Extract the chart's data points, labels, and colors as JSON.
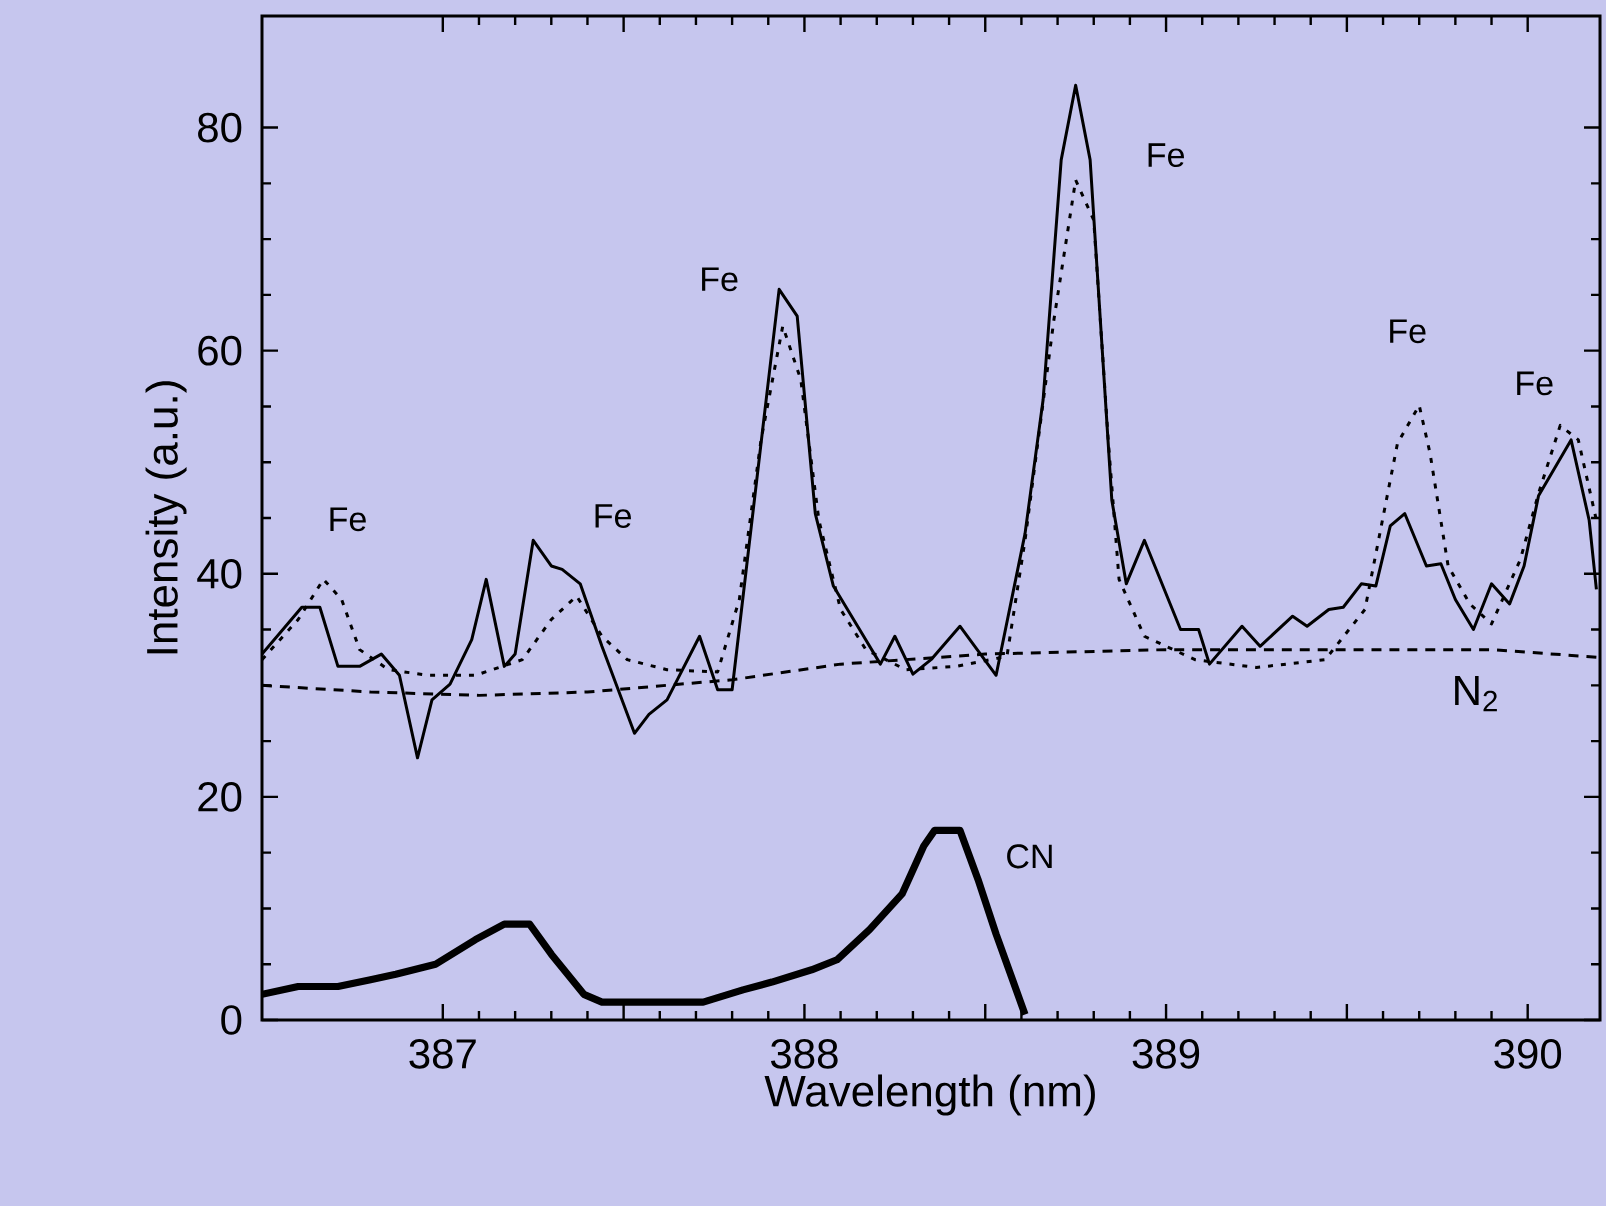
{
  "chart_data": {
    "type": "line",
    "xlabel": "Wavelength (nm)",
    "ylabel": "Intensity (a.u.)",
    "xlim": [
      386.5,
      390.2
    ],
    "ylim": [
      0,
      90
    ],
    "xticks": [
      {
        "value": 387,
        "label": "387"
      },
      {
        "value": 387.5,
        "label": null
      },
      {
        "value": 388,
        "label": "388"
      },
      {
        "value": 388.5,
        "label": null
      },
      {
        "value": 389,
        "label": "389"
      },
      {
        "value": 389.5,
        "label": null
      },
      {
        "value": 390,
        "label": "390"
      }
    ],
    "yticks": [
      0,
      20,
      40,
      60,
      80
    ],
    "series": [
      {
        "color": "#000000",
        "line_style": "solid",
        "x": [
          386.5,
          386.61,
          386.66,
          386.71,
          386.77,
          386.83,
          386.88,
          386.93,
          386.97,
          387.02,
          387.08,
          387.12,
          387.17,
          387.2,
          387.25,
          387.3,
          387.33,
          387.38,
          387.44,
          387.53,
          387.57,
          387.62,
          387.71,
          387.76,
          387.8,
          387.93,
          387.98,
          388.03,
          388.08,
          388.16,
          388.21,
          388.25,
          388.3,
          388.35,
          388.43,
          388.53,
          388.61,
          388.66,
          388.71,
          388.75,
          388.79,
          388.85,
          388.89,
          388.94,
          389.04,
          389.09,
          389.12,
          389.21,
          389.26,
          389.35,
          389.39,
          389.45,
          389.49,
          389.54,
          389.58,
          389.62,
          389.66,
          389.72,
          389.76,
          389.8,
          389.85,
          389.9,
          389.95,
          389.99,
          390.03,
          390.12,
          390.17,
          390.19
        ],
        "values": [
          32.8,
          37.0,
          37.0,
          31.7,
          31.7,
          32.8,
          30.9,
          23.5,
          28.7,
          30.1,
          34.1,
          39.5,
          31.7,
          32.8,
          43.0,
          40.7,
          40.4,
          39.1,
          33.5,
          25.7,
          27.4,
          28.7,
          34.4,
          29.6,
          29.6,
          65.5,
          63.1,
          45.4,
          38.9,
          34.6,
          31.9,
          34.4,
          31.0,
          32.3,
          35.3,
          30.9,
          43.6,
          55.6,
          77.1,
          83.8,
          77.1,
          46.6,
          39.1,
          43.0,
          35.0,
          35.0,
          31.9,
          35.3,
          33.5,
          36.2,
          35.3,
          36.8,
          37.0,
          39.1,
          38.9,
          44.3,
          45.4,
          40.7,
          40.9,
          37.7,
          35.0,
          39.1,
          37.3,
          40.7,
          47.0,
          52.0,
          44.8,
          38.6
        ]
      },
      {
        "color": "#000000",
        "line_style": "dotted",
        "x": [
          386.5,
          386.6,
          386.67,
          386.72,
          386.77,
          386.85,
          386.96,
          387.09,
          387.22,
          387.3,
          387.37,
          387.44,
          387.51,
          387.62,
          387.76,
          387.82,
          387.88,
          387.94,
          387.99,
          388.04,
          388.1,
          388.17,
          388.28,
          388.42,
          388.56,
          388.61,
          388.69,
          388.75,
          388.8,
          388.84,
          388.87,
          388.94,
          389.08,
          389.25,
          389.44,
          389.55,
          389.64,
          389.7,
          389.73,
          389.78,
          389.84,
          389.9,
          389.98,
          390.03,
          390.09,
          390.14,
          390.19
        ],
        "values": [
          32.3,
          35.9,
          39.5,
          37.7,
          33.2,
          31.4,
          30.9,
          30.9,
          32.3,
          35.9,
          38.0,
          34.4,
          32.3,
          31.4,
          31.2,
          37.7,
          52.0,
          62.2,
          57.4,
          44.8,
          36.8,
          33.2,
          31.4,
          31.7,
          32.6,
          43.0,
          62.8,
          75.3,
          71.7,
          52.0,
          39.5,
          34.4,
          32.3,
          31.6,
          32.3,
          36.8,
          51.7,
          55.1,
          50.8,
          40.7,
          37.3,
          35.5,
          41.3,
          47.2,
          53.3,
          52.0,
          44.8
        ]
      },
      {
        "color": "#000000",
        "line_style": "dashed",
        "x": [
          386.5,
          386.8,
          387.1,
          387.4,
          387.8,
          388.1,
          388.5,
          389.0,
          389.5,
          389.9,
          390.2
        ],
        "values": [
          30.0,
          29.4,
          29.1,
          29.4,
          30.5,
          31.9,
          32.8,
          33.2,
          33.2,
          33.2,
          32.5
        ]
      },
      {
        "color": "#000000",
        "line_style": "solid",
        "x": [
          386.5,
          386.6,
          386.71,
          386.8,
          386.87,
          386.98,
          387.09,
          387.17,
          387.24,
          387.3,
          387.39,
          387.44,
          387.72,
          387.83,
          387.91,
          388.02,
          388.09,
          388.18,
          388.27,
          388.33,
          388.36,
          388.43,
          388.48,
          388.53,
          388.61
        ],
        "values": [
          2.3,
          3.0,
          3.0,
          3.6,
          4.1,
          5.0,
          7.2,
          8.6,
          8.6,
          5.9,
          2.3,
          1.6,
          1.6,
          2.7,
          3.4,
          4.5,
          5.4,
          8.1,
          11.3,
          15.6,
          17.0,
          17.0,
          12.6,
          7.7,
          0.5
        ]
      }
    ],
    "annotations": [
      {
        "text": "Fe",
        "x": 386.67,
        "y": 39.5
      },
      {
        "text": "Fe",
        "x": 387.37,
        "y": 38.0
      },
      {
        "text": "Fe",
        "x": 387.93,
        "y": 65.5
      },
      {
        "text": "Fe",
        "x": 388.75,
        "y": 83.8
      },
      {
        "text": "Fe",
        "x": 389.7,
        "y": 55.1
      },
      {
        "text": "Fe",
        "x": 390.09,
        "y": 53.3
      },
      {
        "text": "N$_{2}$",
        "x": 389.9,
        "y": 33.2
      },
      {
        "text": "CN",
        "x": 388.43,
        "y": 17.0
      }
    ]
  }
}
